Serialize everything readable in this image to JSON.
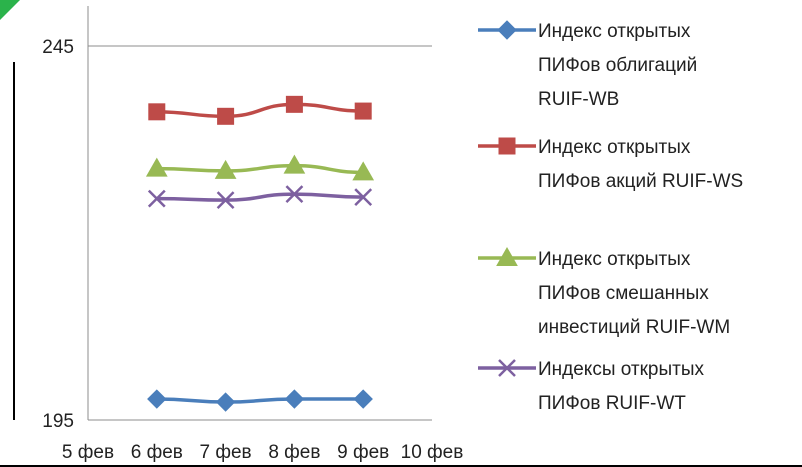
{
  "chart_data": {
    "type": "line",
    "title": "",
    "xlabel": "",
    "ylabel": "",
    "x_ticks": [
      "5 фев",
      "6 фев",
      "7 фев",
      "8 фев",
      "9 фев",
      "10 фев"
    ],
    "x_start": "5 фев",
    "x_end": "10 фев",
    "x": [
      "6 фев",
      "7 фев",
      "8 фев",
      "9 фев"
    ],
    "y_ticks": [
      195,
      245
    ],
    "ylim": [
      195,
      245
    ],
    "grid": true,
    "legend_position": "right",
    "series": [
      {
        "name_lines": [
          "Индекс открытых",
          "ПИФов облигаций",
          "RUIF-WB"
        ],
        "values": [
          197.8,
          197.4,
          197.8,
          197.8
        ],
        "color": "#4a7ebb",
        "marker": "diamond"
      },
      {
        "name_lines": [
          "Индекс открытых",
          "ПИФов акций RUIF-WS"
        ],
        "values": [
          236.2,
          235.6,
          237.2,
          236.3
        ],
        "color": "#be4b48",
        "marker": "square"
      },
      {
        "name_lines": [
          "Индекс открытых",
          "ПИФов смешанных",
          "инвестиций RUIF-WM"
        ],
        "values": [
          228.6,
          228.3,
          229.0,
          228.1
        ],
        "color": "#98b954",
        "marker": "triangle"
      },
      {
        "name_lines": [
          "Индексы открытых",
          "ПИФов RUIF-WT"
        ],
        "values": [
          224.6,
          224.4,
          225.2,
          224.8
        ],
        "color": "#7d60a0",
        "marker": "x"
      }
    ]
  }
}
